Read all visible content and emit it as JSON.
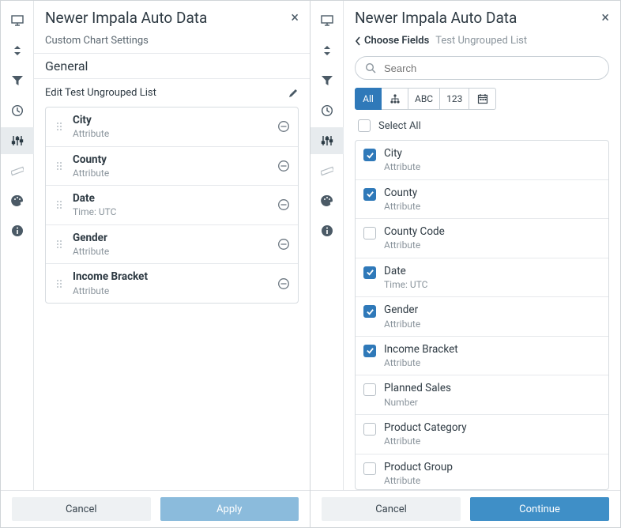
{
  "colors": {
    "accent_strong": "#2f79b9",
    "accent_soft": "#8bbbdc"
  },
  "left": {
    "title": "Newer Impala Auto Data",
    "subhead": "Custom Chart Settings",
    "section": "General",
    "edit_label": "Edit Test Ungrouped List",
    "fields": [
      {
        "name": "City",
        "sub": "Attribute"
      },
      {
        "name": "County",
        "sub": "Attribute"
      },
      {
        "name": "Date",
        "sub": "Time: UTC"
      },
      {
        "name": "Gender",
        "sub": "Attribute"
      },
      {
        "name": "Income Bracket",
        "sub": "Attribute"
      }
    ],
    "cancel": "Cancel",
    "apply": "Apply"
  },
  "right": {
    "title": "Newer Impala Auto Data",
    "back_label": "Choose Fields",
    "crumb_here": "Test Ungrouped List",
    "search_placeholder": "Search",
    "filters": {
      "all": "All",
      "abc": "ABC",
      "num": "123"
    },
    "select_all": "Select All",
    "fields": [
      {
        "name": "City",
        "sub": "Attribute",
        "checked": true
      },
      {
        "name": "County",
        "sub": "Attribute",
        "checked": true
      },
      {
        "name": "County Code",
        "sub": "Attribute",
        "checked": false
      },
      {
        "name": "Date",
        "sub": "Time: UTC",
        "checked": true
      },
      {
        "name": "Gender",
        "sub": "Attribute",
        "checked": true
      },
      {
        "name": "Income Bracket",
        "sub": "Attribute",
        "checked": true
      },
      {
        "name": "Planned Sales",
        "sub": "Number",
        "checked": false
      },
      {
        "name": "Product Category",
        "sub": "Attribute",
        "checked": false
      },
      {
        "name": "Product Group",
        "sub": "Attribute",
        "checked": false
      }
    ],
    "cancel": "Cancel",
    "continue": "Continue"
  }
}
